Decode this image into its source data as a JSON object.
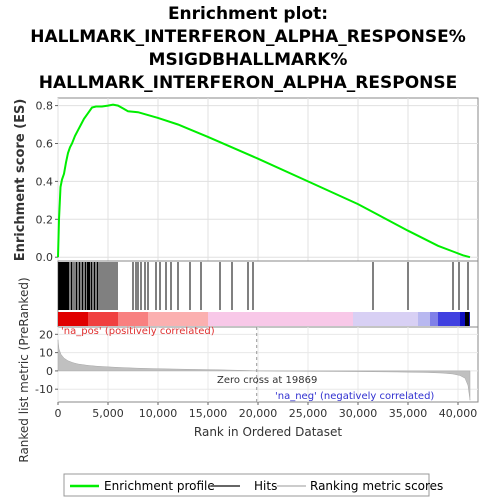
{
  "chart_data": {
    "type": "line",
    "title_lines": [
      "Enrichment plot:",
      "HALLMARK_INTERFERON_ALPHA_RESPONSE%",
      "MSIGDBHALLMARK%",
      "HALLMARK_INTERFERON_ALPHA_RESPONSE"
    ],
    "es_panel": {
      "ylabel": "Enrichment score (ES)",
      "ylim": [
        -0.02,
        0.84
      ],
      "yticks": [
        "0.0",
        "0.2",
        "0.4",
        "0.6",
        "0.8"
      ],
      "curve": [
        [
          0,
          0.0
        ],
        [
          100,
          0.2
        ],
        [
          250,
          0.37
        ],
        [
          400,
          0.41
        ],
        [
          600,
          0.44
        ],
        [
          800,
          0.5
        ],
        [
          1000,
          0.55
        ],
        [
          1200,
          0.58
        ],
        [
          1400,
          0.6
        ],
        [
          1700,
          0.64
        ],
        [
          2000,
          0.67
        ],
        [
          2300,
          0.7
        ],
        [
          2600,
          0.73
        ],
        [
          3000,
          0.76
        ],
        [
          3400,
          0.79
        ],
        [
          3800,
          0.795
        ],
        [
          4400,
          0.795
        ],
        [
          5000,
          0.8
        ],
        [
          5500,
          0.805
        ],
        [
          6000,
          0.8
        ],
        [
          6500,
          0.785
        ],
        [
          7000,
          0.77
        ],
        [
          8000,
          0.765
        ],
        [
          9000,
          0.75
        ],
        [
          10000,
          0.735
        ],
        [
          12000,
          0.7
        ],
        [
          15000,
          0.635
        ],
        [
          20000,
          0.52
        ],
        [
          25000,
          0.4
        ],
        [
          30000,
          0.28
        ],
        [
          35000,
          0.14
        ],
        [
          38000,
          0.06
        ],
        [
          39500,
          0.03
        ],
        [
          40500,
          0.01
        ],
        [
          41200,
          0.0
        ]
      ]
    },
    "hits": [
      60,
      150,
      250,
      350,
      450,
      550,
      650,
      750,
      850,
      950,
      1050,
      1200,
      1350,
      1500,
      1700,
      1850,
      2000,
      2150,
      2300,
      2450,
      2600,
      2750,
      2900,
      3000,
      3100,
      3200,
      3350,
      3500,
      3650,
      3800,
      3950,
      4100,
      4300,
      4500,
      4700,
      4900,
      5100,
      5300,
      5500,
      5700,
      5900,
      7500,
      7800,
      8000,
      8300,
      8700,
      9000,
      9800,
      10200,
      10800,
      11300,
      12000,
      13200,
      14300,
      16200,
      17400,
      19000,
      19500,
      31500,
      35000,
      39500,
      40100,
      41000
    ],
    "metric_panel": {
      "ylabel": "Ranked list metric (PreRanked)",
      "ylim": [
        -17,
        24
      ],
      "yticks": [
        "20",
        "10",
        "0",
        "-10"
      ],
      "profile": [
        [
          0,
          17
        ],
        [
          100,
          12
        ],
        [
          300,
          9
        ],
        [
          600,
          7
        ],
        [
          1000,
          5.5
        ],
        [
          1500,
          4.5
        ],
        [
          2000,
          3.8
        ],
        [
          3000,
          3.0
        ],
        [
          4000,
          2.5
        ],
        [
          6000,
          1.9
        ],
        [
          8000,
          1.5
        ],
        [
          10000,
          1.2
        ],
        [
          13000,
          0.9
        ],
        [
          16000,
          0.6
        ],
        [
          19000,
          0.2
        ],
        [
          19869,
          0.0
        ],
        [
          22000,
          -0.1
        ],
        [
          26000,
          -0.25
        ],
        [
          30000,
          -0.4
        ],
        [
          34000,
          -0.6
        ],
        [
          37000,
          -0.9
        ],
        [
          38500,
          -1.2
        ],
        [
          39500,
          -1.7
        ],
        [
          40200,
          -2.5
        ],
        [
          40700,
          -4
        ],
        [
          41000,
          -8
        ],
        [
          41200,
          -16
        ]
      ],
      "pos_label": "'na_pos' (positively correlated)",
      "neg_label": "'na_neg' (negatively correlated)",
      "zero_cross_label": "Zero cross at 19869",
      "zero_cross": 19869
    },
    "xaxis": {
      "xlabel": "Rank in Ordered Dataset",
      "xlim": [
        0,
        42000
      ],
      "xticks": [
        "0",
        "5,000",
        "10,000",
        "15,000",
        "20,000",
        "25,000",
        "30,000",
        "35,000",
        "40,000"
      ]
    },
    "legend": {
      "placement": "bottom",
      "items": [
        "Enrichment profile",
        "Hits",
        "Ranking metric scores"
      ]
    },
    "colors": {
      "profile": "#00ff00",
      "hits": "#000000",
      "metric_fill": "#c0c0c0",
      "pos_text": "#e03030",
      "neg_text": "#3030d0"
    }
  }
}
